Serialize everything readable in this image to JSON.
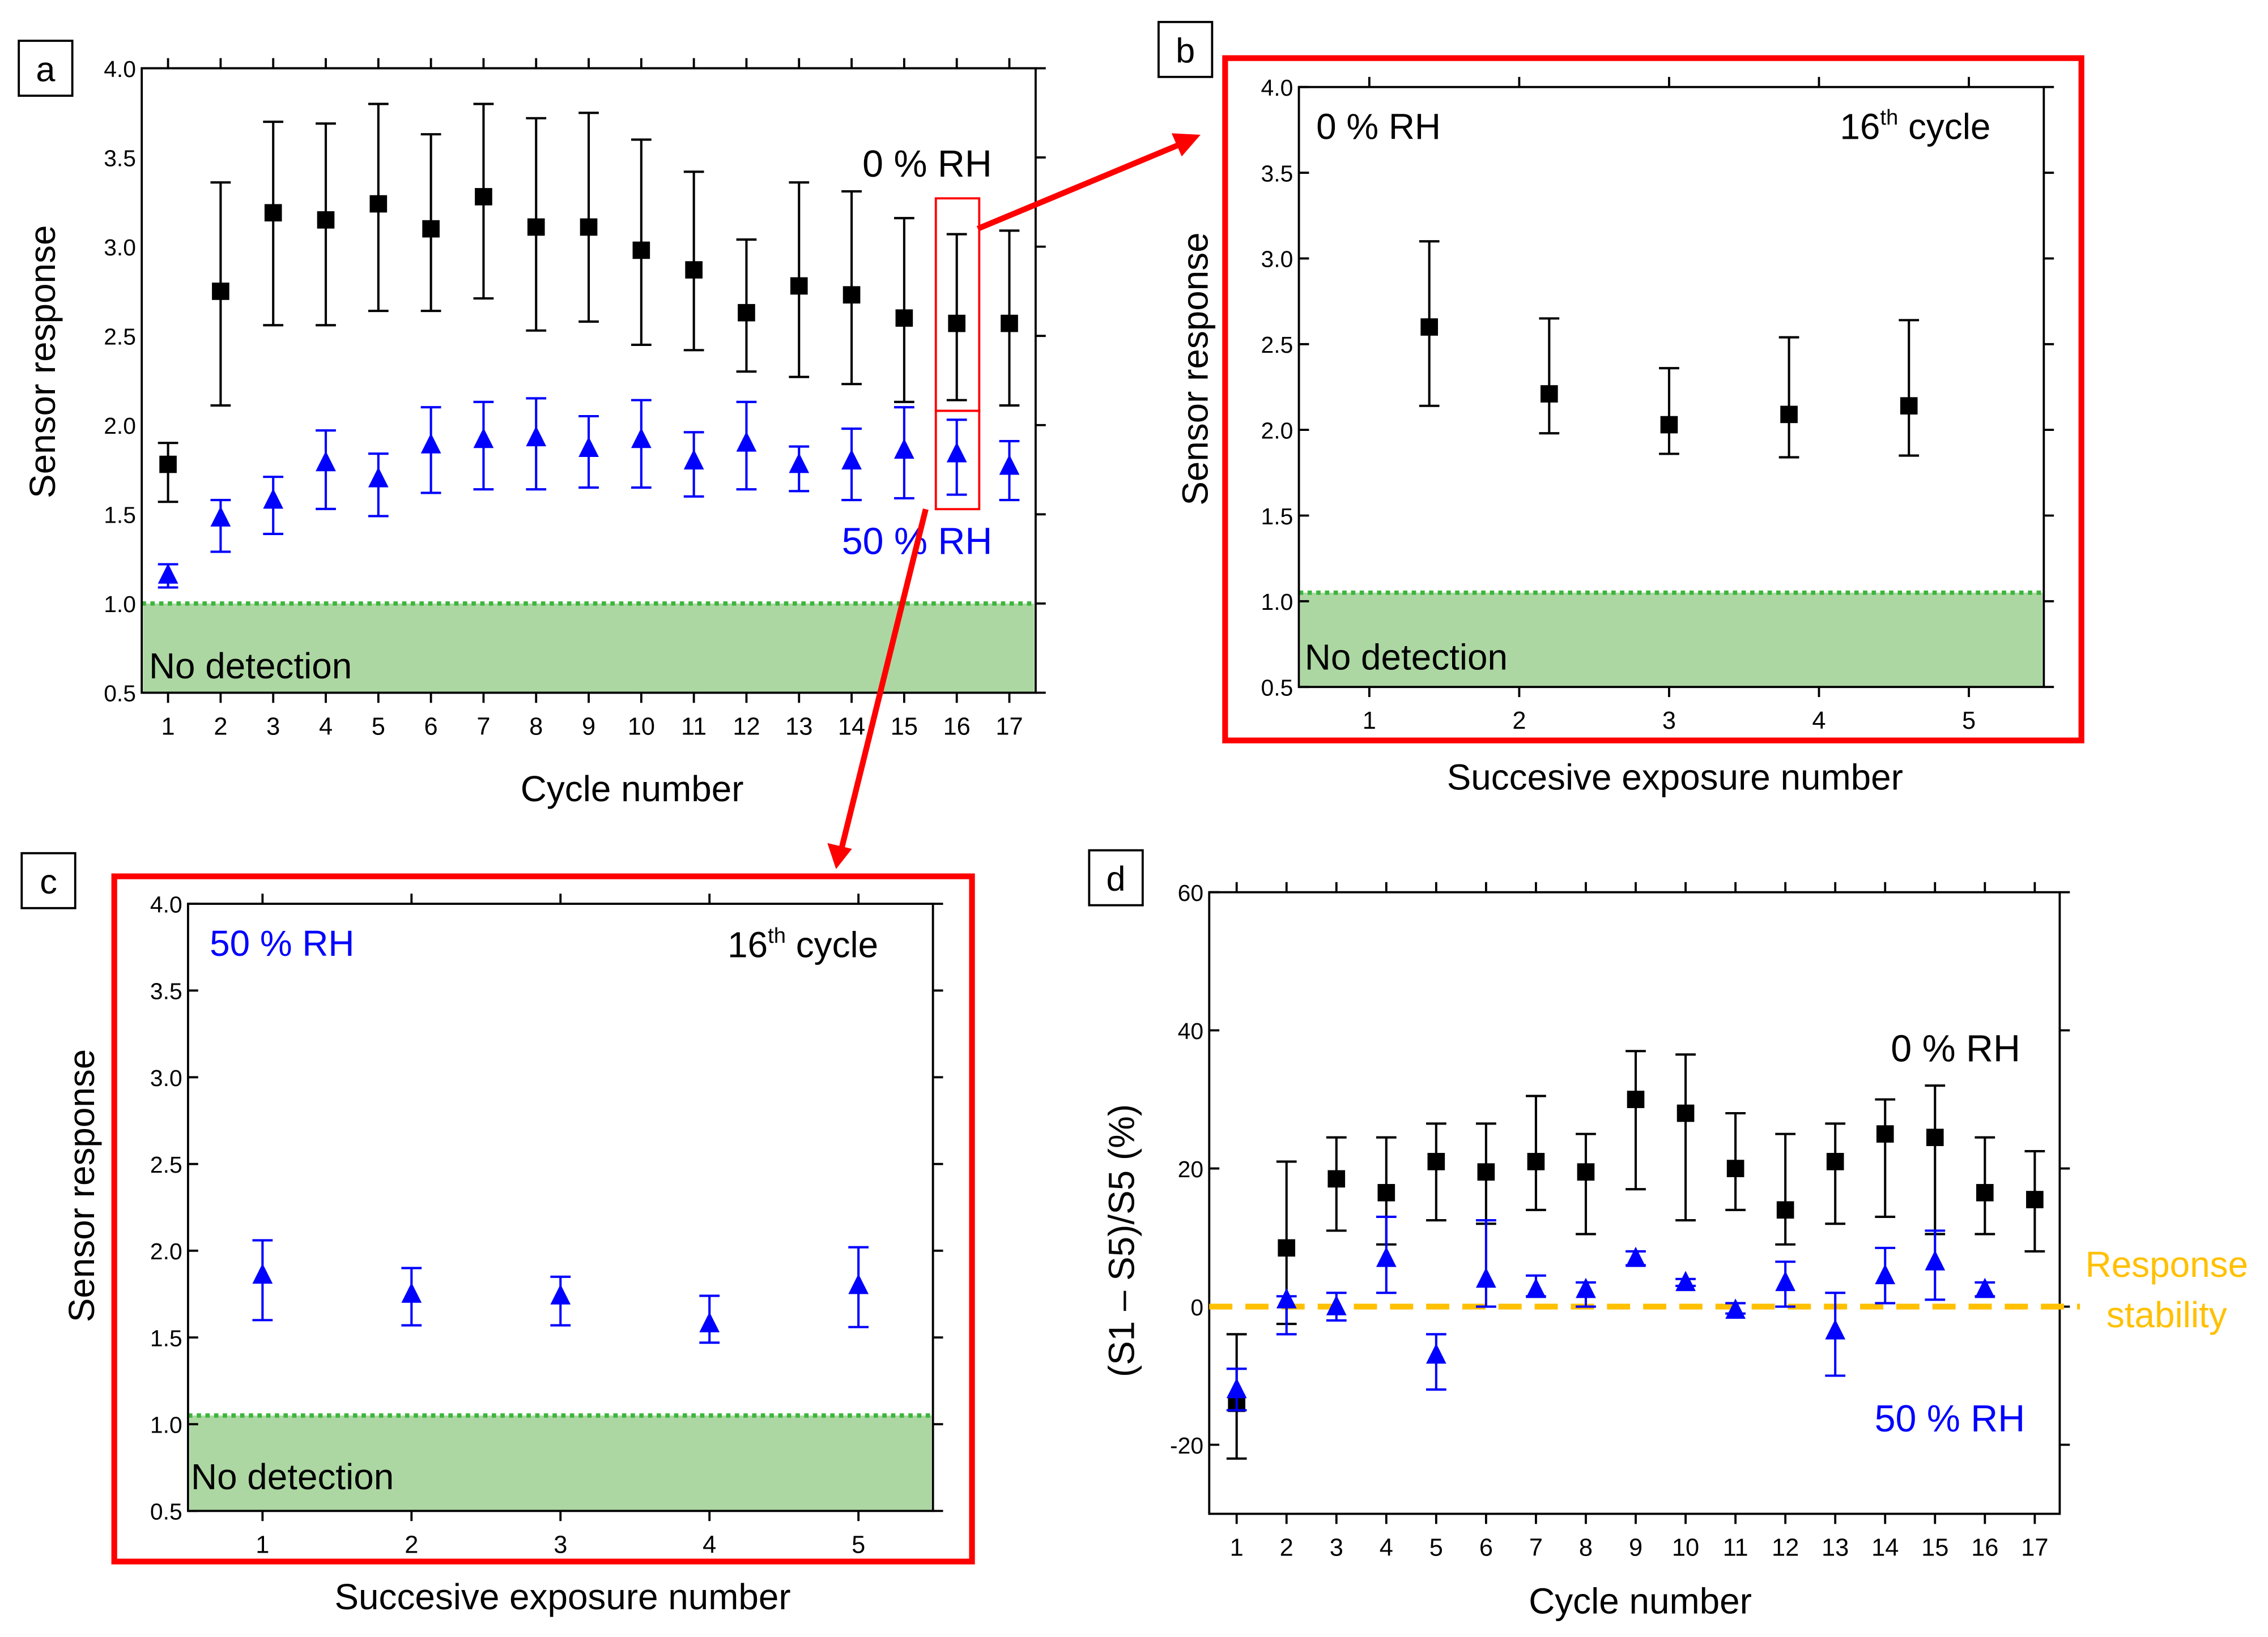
{
  "chart_data": [
    {
      "panel_label": "a",
      "type": "scatter",
      "xlabel": "Cycle number",
      "ylabel": "Sensor response",
      "xlim": [
        0.5,
        17.5
      ],
      "ylim": [
        0.5,
        4.0
      ],
      "xticks": [
        1,
        2,
        3,
        4,
        5,
        6,
        7,
        8,
        9,
        10,
        11,
        12,
        13,
        14,
        15,
        16,
        17
      ],
      "yticks": [
        0.5,
        1.0,
        1.5,
        2.0,
        2.5,
        3.0,
        3.5,
        4.0
      ],
      "ytick_labels": [
        "0.5",
        "1.0",
        "1.5",
        "2.0",
        "2.5",
        "3.0",
        "3.5",
        "4.0"
      ],
      "band": {
        "label": "No detection",
        "from": 0.5,
        "to": 1.0,
        "color": "#acd7a2",
        "line_color": "#3db53d"
      },
      "annotations": [
        {
          "text": "0 % RH",
          "color": "#000000"
        },
        {
          "text": "50 % RH",
          "color": "#0000ff"
        }
      ],
      "series": [
        {
          "name": "0 % RH",
          "color": "#000000",
          "marker": "square",
          "x": [
            1,
            2,
            3,
            4,
            5,
            6,
            7,
            8,
            9,
            10,
            11,
            12,
            13,
            14,
            15,
            16,
            17
          ],
          "y": [
            1.78,
            2.75,
            3.19,
            3.15,
            3.24,
            3.1,
            3.28,
            3.11,
            3.11,
            2.98,
            2.87,
            2.63,
            2.78,
            2.73,
            2.6,
            2.57,
            2.57
          ],
          "y_low": [
            1.57,
            2.11,
            2.56,
            2.56,
            2.64,
            2.64,
            2.71,
            2.53,
            2.58,
            2.45,
            2.42,
            2.3,
            2.27,
            2.23,
            2.13,
            2.14,
            2.11
          ],
          "y_high": [
            1.9,
            3.36,
            3.7,
            3.69,
            3.8,
            3.63,
            3.8,
            3.72,
            3.75,
            3.6,
            3.42,
            3.04,
            3.36,
            3.31,
            3.16,
            3.07,
            3.09
          ]
        },
        {
          "name": "50 % RH",
          "color": "#0000ff",
          "marker": "triangle",
          "x": [
            1,
            2,
            3,
            4,
            5,
            6,
            7,
            8,
            9,
            10,
            11,
            12,
            13,
            14,
            15,
            16,
            17
          ],
          "y": [
            1.16,
            1.48,
            1.58,
            1.79,
            1.7,
            1.89,
            1.92,
            1.93,
            1.87,
            1.92,
            1.8,
            1.9,
            1.78,
            1.8,
            1.86,
            1.84,
            1.77
          ],
          "y_low": [
            1.09,
            1.29,
            1.39,
            1.53,
            1.49,
            1.62,
            1.64,
            1.64,
            1.65,
            1.65,
            1.6,
            1.64,
            1.63,
            1.58,
            1.59,
            1.61,
            1.58
          ],
          "y_high": [
            1.22,
            1.58,
            1.71,
            1.97,
            1.84,
            2.1,
            2.13,
            2.15,
            2.05,
            2.14,
            1.96,
            2.13,
            1.88,
            1.98,
            2.1,
            2.03,
            1.91
          ]
        }
      ]
    },
    {
      "panel_label": "b",
      "type": "scatter",
      "xlabel": "Succesive exposure number",
      "ylabel": "Sensor response",
      "xlim": [
        0.53,
        5.5
      ],
      "ylim": [
        0.5,
        4.0
      ],
      "xticks": [
        1,
        2,
        3,
        4,
        5
      ],
      "yticks": [
        0.5,
        1.0,
        1.5,
        2.0,
        2.5,
        3.0,
        3.5,
        4.0
      ],
      "ytick_labels": [
        "0.5",
        "1.0",
        "1.5",
        "2.0",
        "2.5",
        "3.0",
        "3.5",
        "4.0"
      ],
      "band": {
        "label": "No detection",
        "from": 0.5,
        "to": 1.05,
        "color": "#acd7a2",
        "line_color": "#3db53d"
      },
      "annotations": [
        {
          "text": "0 % RH",
          "color": "#000000"
        },
        {
          "text": "16",
          "sup": "th",
          "rest": " cycle",
          "color": "#000000"
        }
      ],
      "series": [
        {
          "name": "0 % RH",
          "color": "#000000",
          "marker": "square",
          "x": [
            1.4,
            2.2,
            3.0,
            3.8,
            4.6
          ],
          "y": [
            2.6,
            2.21,
            2.03,
            2.09,
            2.14
          ],
          "y_low": [
            2.14,
            1.98,
            1.86,
            1.84,
            1.85
          ],
          "y_high": [
            3.1,
            2.65,
            2.36,
            2.54,
            2.64
          ]
        }
      ]
    },
    {
      "panel_label": "c",
      "type": "scatter",
      "xlabel": "Succesive exposure number",
      "ylabel": "Sensor response",
      "xlim": [
        0.5,
        5.5
      ],
      "ylim": [
        0.5,
        4.0
      ],
      "xticks": [
        1,
        2,
        3,
        4,
        5
      ],
      "yticks": [
        0.5,
        1.0,
        1.5,
        2.0,
        2.5,
        3.0,
        3.5,
        4.0
      ],
      "ytick_labels": [
        "0.5",
        "1.0",
        "1.5",
        "2.0",
        "2.5",
        "3.0",
        "3.5",
        "4.0"
      ],
      "band": {
        "label": "No detection",
        "from": 0.5,
        "to": 1.05,
        "color": "#acd7a2",
        "line_color": "#3db53d"
      },
      "annotations": [
        {
          "text": "50 % RH",
          "color": "#0000ff"
        },
        {
          "text": "16",
          "sup": "th",
          "rest": " cycle",
          "color": "#000000"
        }
      ],
      "series": [
        {
          "name": "50 % RH",
          "color": "#0000ff",
          "marker": "triangle",
          "x": [
            1,
            2,
            3,
            4,
            5
          ],
          "y": [
            1.86,
            1.75,
            1.74,
            1.58,
            1.8
          ],
          "y_low": [
            1.6,
            1.57,
            1.57,
            1.47,
            1.56
          ],
          "y_high": [
            2.06,
            1.9,
            1.85,
            1.74,
            2.02
          ]
        }
      ]
    },
    {
      "panel_label": "d",
      "type": "scatter",
      "xlabel": "Cycle number",
      "ylabel": "(S1 – S5)/S5 (%)",
      "xlim": [
        0.45,
        17.5
      ],
      "ylim": [
        -30,
        60
      ],
      "xticks": [
        1,
        2,
        3,
        4,
        5,
        6,
        7,
        8,
        9,
        10,
        11,
        12,
        13,
        14,
        15,
        16,
        17
      ],
      "yticks": [
        -20,
        0,
        20,
        40,
        60
      ],
      "ytick_labels": [
        "-20",
        "0",
        "20",
        "40",
        "60"
      ],
      "reference_line": {
        "y": 0,
        "label_lines": [
          "Response",
          "stability"
        ],
        "color": "#ffc000"
      },
      "annotations": [
        {
          "text": "0 % RH",
          "color": "#000000"
        },
        {
          "text": "50 % RH",
          "color": "#0000ff"
        }
      ],
      "series": [
        {
          "name": "0 % RH",
          "color": "#000000",
          "marker": "square",
          "x": [
            1,
            2,
            3,
            4,
            5,
            6,
            7,
            8,
            9,
            10,
            11,
            12,
            13,
            14,
            15,
            16,
            17
          ],
          "y": [
            -14,
            8.5,
            18.5,
            16.5,
            21,
            19.5,
            21,
            19.5,
            30,
            28,
            20,
            14,
            21,
            25,
            24.5,
            16.5,
            15.5
          ],
          "y_low": [
            -22,
            -2.5,
            11,
            9,
            12.5,
            12,
            14,
            10.5,
            17,
            12.5,
            14,
            9,
            12,
            13,
            10.5,
            10.5,
            8
          ],
          "y_high": [
            -4,
            21,
            24.5,
            24.5,
            26.5,
            26.5,
            30.5,
            25,
            37,
            36.5,
            28,
            25,
            26.5,
            30,
            32,
            24.5,
            22.5
          ]
        },
        {
          "name": "50 % RH",
          "color": "#0000ff",
          "marker": "triangle",
          "x": [
            1,
            2,
            3,
            4,
            5,
            6,
            7,
            8,
            9,
            10,
            11,
            12,
            13,
            14,
            15,
            16
          ],
          "y": [
            -12,
            1,
            0,
            7,
            -7,
            4,
            2.5,
            2.5,
            7,
            3.5,
            -0.5,
            3.5,
            -3.5,
            4.5,
            6.5,
            2.5
          ],
          "y_low": [
            -15,
            -4,
            -2,
            2,
            -12,
            0,
            1.5,
            0,
            6,
            3,
            -1,
            0,
            -10,
            0.5,
            1,
            1.5
          ],
          "y_high": [
            -9,
            1.5,
            2,
            13,
            -4,
            12.5,
            4.5,
            3.5,
            8,
            4,
            0.5,
            6.5,
            2,
            8.5,
            11,
            3.5
          ]
        }
      ]
    }
  ],
  "colors": {
    "highlight": "#ff0000"
  }
}
